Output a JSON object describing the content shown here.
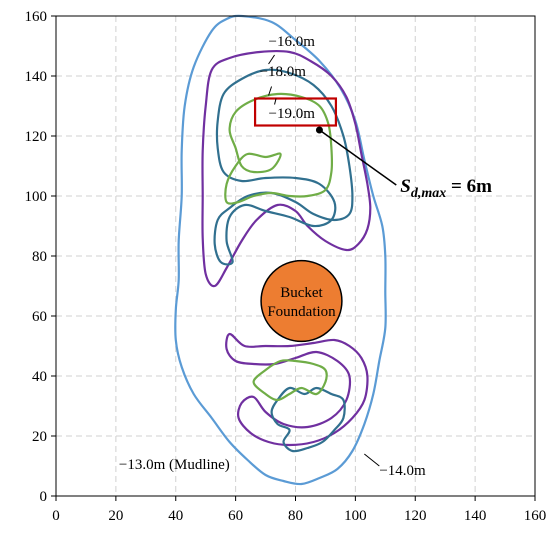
{
  "chart_data": {
    "type": "contour",
    "xlim": [
      0,
      160
    ],
    "ylim": [
      0,
      160
    ],
    "x_ticks": [
      "0",
      "20",
      "40",
      "60",
      "80",
      "100",
      "120",
      "140",
      "160"
    ],
    "y_ticks": [
      "0",
      "20",
      "40",
      "60",
      "80",
      "100",
      "120",
      "140",
      "160"
    ],
    "grid": true,
    "grid_style": "dashed",
    "contours": [
      {
        "label": "−14.0m",
        "color": "#5B9BD5",
        "points": [
          [
            62,
            160
          ],
          [
            72,
            158
          ],
          [
            80,
            152
          ],
          [
            88,
            145
          ],
          [
            95,
            136
          ],
          [
            100,
            125
          ],
          [
            103,
            112
          ],
          [
            106,
            100
          ],
          [
            109,
            90
          ],
          [
            110,
            80
          ],
          [
            110,
            68
          ],
          [
            110,
            56
          ],
          [
            108,
            45
          ],
          [
            106,
            34
          ],
          [
            103,
            24
          ],
          [
            99,
            15
          ],
          [
            94,
            9
          ],
          [
            88,
            6
          ],
          [
            82,
            4
          ],
          [
            76,
            5
          ],
          [
            70,
            7
          ],
          [
            64,
            12
          ],
          [
            58,
            18
          ],
          [
            52,
            26
          ],
          [
            46,
            34
          ],
          [
            42,
            43
          ],
          [
            40,
            52
          ],
          [
            40,
            62
          ],
          [
            41,
            72
          ],
          [
            41,
            85
          ],
          [
            42,
            100
          ],
          [
            42,
            115
          ],
          [
            43,
            130
          ],
          [
            46,
            143
          ],
          [
            52,
            155
          ],
          [
            57,
            159
          ]
        ]
      },
      {
        "label": "−16.0m",
        "color": "#7030A0",
        "points": [
          [
            52,
            142
          ],
          [
            58,
            146
          ],
          [
            68,
            148
          ],
          [
            78,
            148
          ],
          [
            85,
            145
          ],
          [
            92,
            140
          ],
          [
            97,
            133
          ],
          [
            100,
            124
          ],
          [
            102,
            114
          ],
          [
            104,
            104
          ],
          [
            105,
            96
          ],
          [
            104,
            89
          ],
          [
            101,
            84
          ],
          [
            97,
            82
          ],
          [
            90,
            85
          ],
          [
            84,
            90
          ],
          [
            80,
            95
          ],
          [
            74,
            97
          ],
          [
            67,
            92
          ],
          [
            62,
            85
          ],
          [
            57,
            76
          ],
          [
            53,
            70
          ],
          [
            50,
            74
          ],
          [
            49,
            86
          ],
          [
            49,
            100
          ],
          [
            49,
            115
          ],
          [
            50,
            130
          ]
        ]
      },
      {
        "label": "−16.0m",
        "color": "#7030A0",
        "points": [
          [
            58,
            54
          ],
          [
            63,
            50
          ],
          [
            70,
            50
          ],
          [
            78,
            50
          ],
          [
            86,
            51
          ],
          [
            93,
            52
          ],
          [
            98,
            50
          ],
          [
            102,
            46
          ],
          [
            104,
            40
          ],
          [
            103,
            32
          ],
          [
            99,
            26
          ],
          [
            93,
            21
          ],
          [
            86,
            18
          ],
          [
            78,
            17
          ],
          [
            71,
            18
          ],
          [
            65,
            21
          ],
          [
            61,
            26
          ],
          [
            62,
            31
          ],
          [
            66,
            33
          ],
          [
            70,
            28
          ],
          [
            76,
            24
          ],
          [
            84,
            23
          ],
          [
            92,
            26
          ],
          [
            97,
            32
          ],
          [
            98,
            40
          ],
          [
            94,
            45
          ],
          [
            87,
            48
          ],
          [
            80,
            46
          ],
          [
            73,
            44
          ],
          [
            66,
            44
          ],
          [
            60,
            45
          ],
          [
            57,
            49
          ]
        ]
      },
      {
        "label": "−18.0m",
        "color": "#31708F",
        "points": [
          [
            56,
            134
          ],
          [
            62,
            139
          ],
          [
            70,
            142
          ],
          [
            78,
            141
          ],
          [
            86,
            137
          ],
          [
            92,
            130
          ],
          [
            96,
            120
          ],
          [
            98,
            110
          ],
          [
            99,
            100
          ],
          [
            98,
            94
          ],
          [
            93,
            92
          ],
          [
            86,
            94
          ],
          [
            80,
            98
          ],
          [
            72,
            101
          ],
          [
            64,
            100
          ],
          [
            58,
            96
          ],
          [
            54,
            92
          ],
          [
            53,
            84
          ],
          [
            55,
            78
          ],
          [
            59,
            78
          ],
          [
            57,
            85
          ],
          [
            58,
            93
          ],
          [
            63,
            97
          ],
          [
            70,
            95
          ],
          [
            78,
            93
          ],
          [
            86,
            90
          ],
          [
            92,
            92
          ],
          [
            93,
            98
          ],
          [
            88,
            104
          ],
          [
            80,
            106
          ],
          [
            70,
            106
          ],
          [
            62,
            105
          ],
          [
            56,
            108
          ],
          [
            54,
            116
          ],
          [
            54,
            125
          ]
        ]
      },
      {
        "label": "−18.0m",
        "color": "#31708F",
        "points": [
          [
            74,
            32
          ],
          [
            78,
            36
          ],
          [
            83,
            34
          ],
          [
            87,
            36
          ],
          [
            92,
            34
          ],
          [
            96,
            32
          ],
          [
            96,
            26
          ],
          [
            93,
            22
          ],
          [
            89,
            18
          ],
          [
            84,
            16
          ],
          [
            79,
            15
          ],
          [
            76,
            18
          ],
          [
            78,
            22
          ],
          [
            74,
            24
          ],
          [
            72,
            28
          ]
        ]
      },
      {
        "label": "−19.0m",
        "color": "#70AD47",
        "points": [
          [
            60,
            128
          ],
          [
            66,
            132
          ],
          [
            74,
            134
          ],
          [
            82,
            133
          ],
          [
            88,
            130
          ],
          [
            91,
            124
          ],
          [
            92,
            116
          ],
          [
            92,
            108
          ],
          [
            90,
            102
          ],
          [
            84,
            100
          ],
          [
            78,
            100
          ],
          [
            72,
            101
          ],
          [
            66,
            100
          ],
          [
            61,
            98
          ],
          [
            57,
            98
          ],
          [
            57,
            104
          ],
          [
            60,
            110
          ],
          [
            64,
            114
          ],
          [
            70,
            113
          ],
          [
            75,
            114
          ],
          [
            72,
            109
          ],
          [
            66,
            108
          ],
          [
            62,
            110
          ],
          [
            60,
            116
          ],
          [
            58,
            122
          ]
        ]
      },
      {
        "label": "−19.0m",
        "color": "#70AD47",
        "points": [
          [
            66,
            38
          ],
          [
            70,
            42
          ],
          [
            75,
            45
          ],
          [
            80,
            45
          ],
          [
            86,
            44
          ],
          [
            90,
            42
          ],
          [
            90,
            38
          ],
          [
            87,
            34
          ],
          [
            82,
            36
          ],
          [
            78,
            34
          ],
          [
            74,
            32
          ],
          [
            70,
            34
          ]
        ]
      }
    ],
    "circle": {
      "label": "Bucket Foundation",
      "center": [
        82,
        65
      ],
      "radius": 13.5,
      "fill": "#ED7D31"
    },
    "labels": [
      {
        "text": "−16.0m",
        "x": 71,
        "y": 150
      },
      {
        "text": "−18.0m",
        "x": 68,
        "y": 140
      },
      {
        "text": "−19.0m",
        "x": 71,
        "y": 126
      },
      {
        "text": "−13.0m (Mudline)",
        "x": 21,
        "y": 9
      },
      {
        "text": "−14.0m",
        "x": 108,
        "y": 7
      }
    ],
    "annotation": {
      "text_main": "S",
      "text_sub": "d,max",
      "text_tail": " = 6m",
      "point": [
        88,
        122
      ],
      "text_at": [
        115,
        105
      ]
    },
    "highlight_box": {
      "x0": 66.5,
      "y0": 123.5,
      "x1": 93.5,
      "y1": 132.5,
      "color": "#C00000"
    }
  }
}
